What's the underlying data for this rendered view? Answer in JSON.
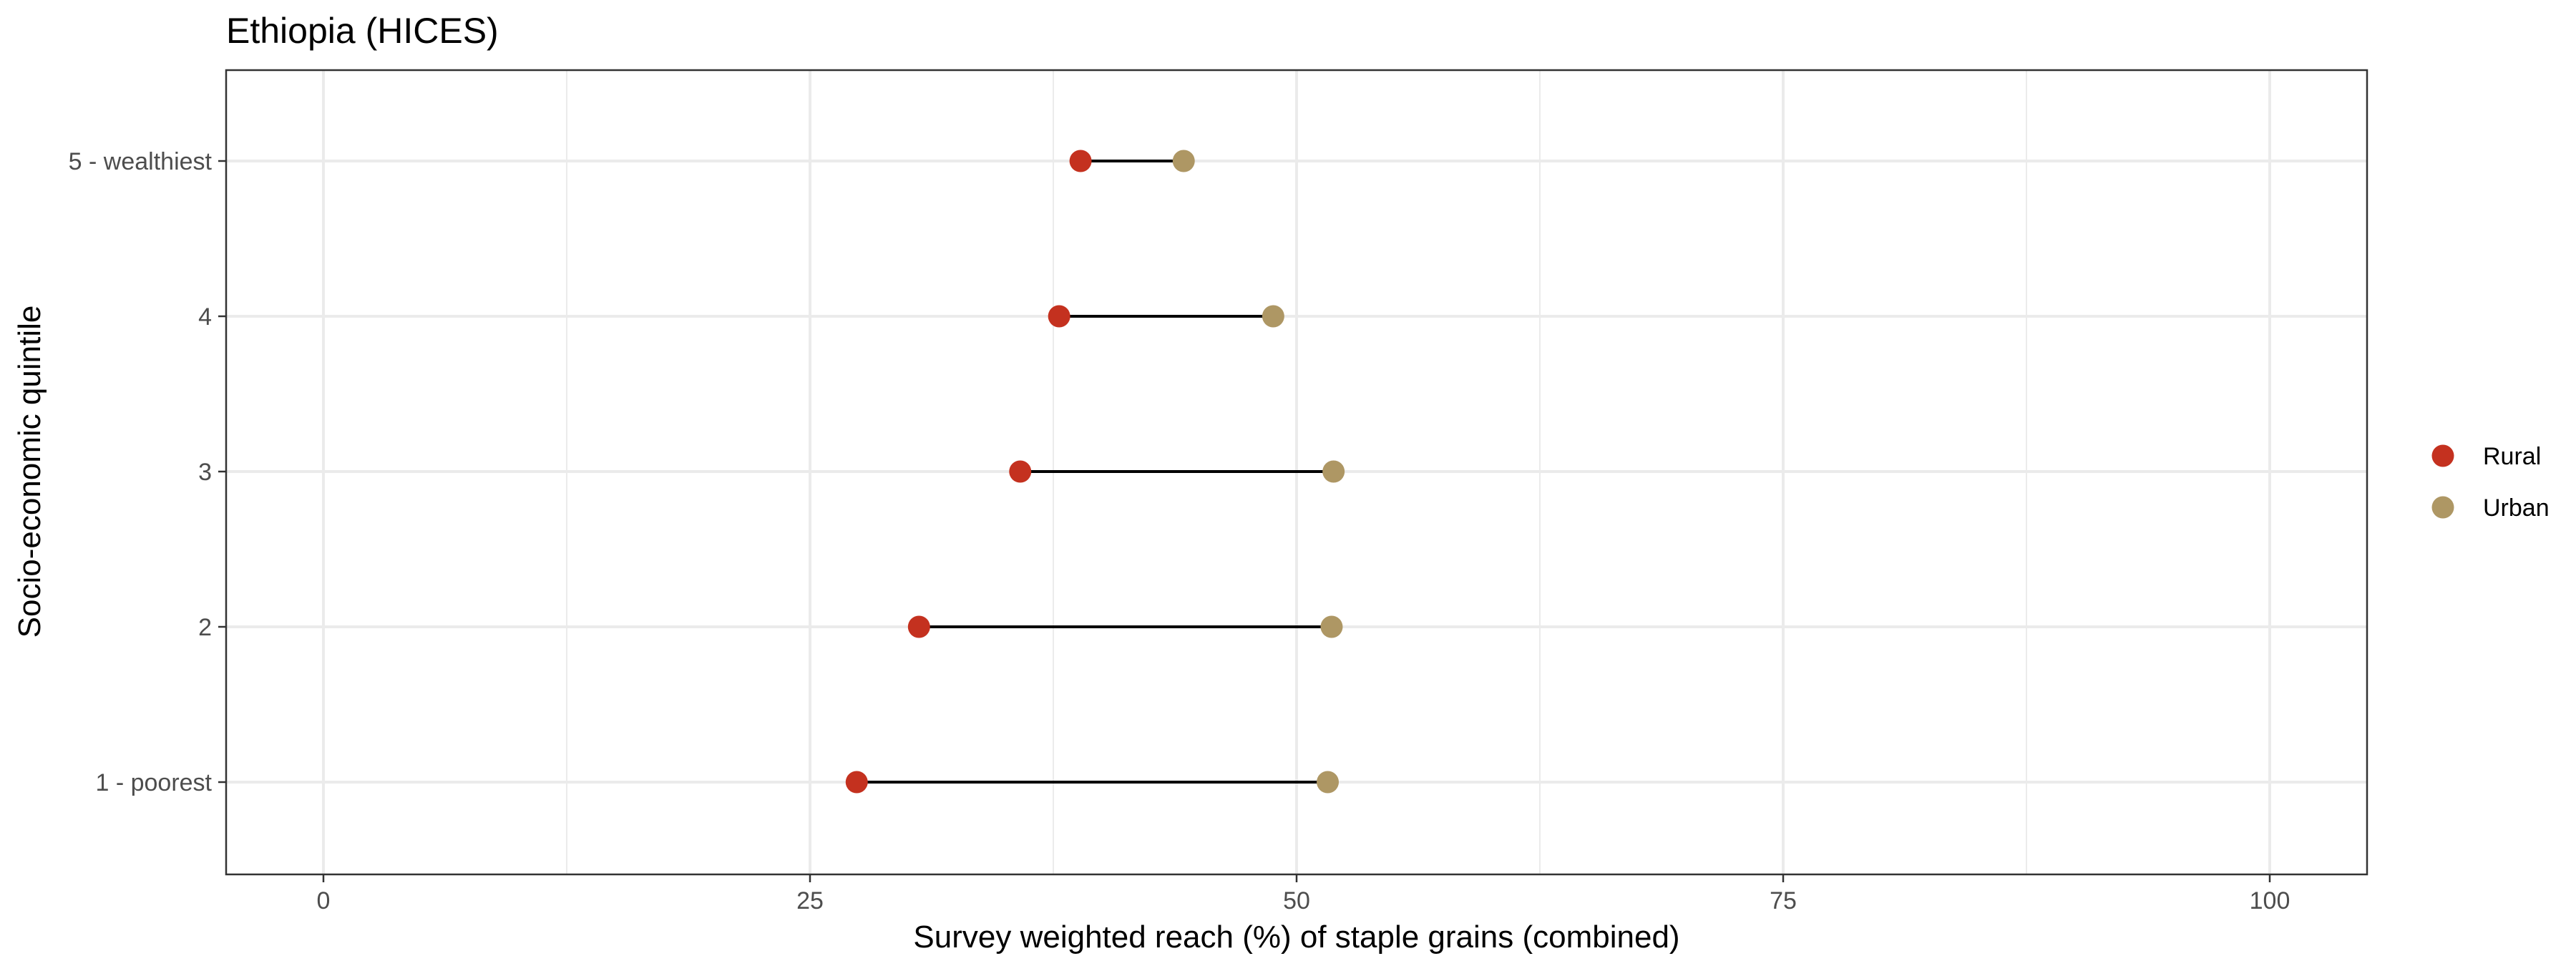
{
  "chart_data": {
    "type": "dumbbell",
    "title": "Ethiopia (HICES)",
    "xlabel": "Survey weighted reach (%) of staple grains (combined)",
    "ylabel": "Socio-economic quintile",
    "xlim": [
      -5,
      105
    ],
    "xticks": [
      0,
      25,
      50,
      75,
      100
    ],
    "xtick_labels": [
      "0",
      "25",
      "50",
      "75",
      "100"
    ],
    "categories": [
      "1 - poorest",
      "2",
      "3",
      "4",
      "5 - wealthiest"
    ],
    "series": [
      {
        "name": "Rural",
        "color": "#c4311f",
        "values": [
          27.4,
          30.6,
          35.8,
          37.8,
          38.9
        ]
      },
      {
        "name": "Urban",
        "color": "#ae9764",
        "values": [
          51.6,
          51.8,
          51.9,
          48.8,
          44.2
        ]
      }
    ],
    "grid": true,
    "legend_position": "right"
  }
}
